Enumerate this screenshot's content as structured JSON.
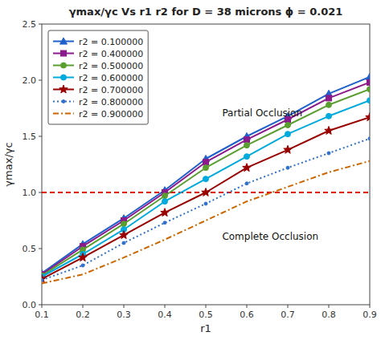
{
  "chart_data": {
    "type": "line",
    "title": "γmax/γc Vs r1 r2 for D = 38 microns ϕ = 0.021",
    "x_label": "r1",
    "y_label": "γmax/γc",
    "x": [
      0.1,
      0.2,
      0.3,
      0.4,
      0.5,
      0.6,
      0.7,
      0.8,
      0.9
    ],
    "xlim": [
      0.1,
      0.9
    ],
    "ylim": [
      0,
      2.5
    ],
    "xticks": [
      0.1,
      0.2,
      0.3,
      0.4,
      0.5,
      0.6,
      0.7,
      0.8,
      0.9
    ],
    "yticks": [
      {
        "value": 0,
        "label": "0.0"
      },
      0.5,
      {
        "value": 1.0,
        "label": "1.0"
      },
      1.5,
      {
        "value": 2.0,
        "label": "2.0"
      },
      2.5
    ],
    "grid": false,
    "legend": "upper left",
    "series": [
      {
        "name": "r2 = 0.100000",
        "color": "#2060cc",
        "line_style": "solid",
        "marker": "triangle",
        "values": [
          0.28,
          0.54,
          0.77,
          1.02,
          1.3,
          1.5,
          1.68,
          1.88,
          2.03
        ]
      },
      {
        "name": "r2 = 0.400000",
        "color": "#8b1a8b",
        "line_style": "solid",
        "marker": "square",
        "values": [
          0.27,
          0.52,
          0.75,
          1.0,
          1.27,
          1.47,
          1.65,
          1.84,
          1.98
        ]
      },
      {
        "name": "r2 = 0.500000",
        "color": "#5a9e30",
        "line_style": "solid",
        "marker": "circle",
        "values": [
          0.26,
          0.49,
          0.72,
          0.97,
          1.22,
          1.42,
          1.6,
          1.78,
          1.92
        ]
      },
      {
        "name": "r2 = 0.600000",
        "color": "#00aadd",
        "line_style": "solid",
        "marker": "circle",
        "values": [
          0.25,
          0.45,
          0.67,
          0.92,
          1.12,
          1.32,
          1.52,
          1.68,
          1.82
        ]
      },
      {
        "name": "r2 = 0.700000",
        "color": "#990000",
        "line_style": "solid",
        "marker": "star",
        "values": [
          0.23,
          0.42,
          0.62,
          0.82,
          1.0,
          1.22,
          1.38,
          1.55,
          1.67
        ]
      },
      {
        "name": "r2 = 0.800000",
        "color": "#3070cc",
        "line_style": "dotted",
        "marker": "point",
        "values": [
          0.22,
          0.35,
          0.55,
          0.73,
          0.9,
          1.08,
          1.22,
          1.35,
          1.48
        ]
      },
      {
        "name": "r2 = 0.900000",
        "color": "#cc6600",
        "line_style": "dashdot",
        "marker": "none",
        "values": [
          0.19,
          0.27,
          0.42,
          0.58,
          0.75,
          0.92,
          1.05,
          1.18,
          1.28
        ]
      }
    ],
    "reference_line": {
      "y": 1.0,
      "color": "#dd0000",
      "line_style": "dashed"
    },
    "annotations": [
      {
        "text": "Partial Occlusion",
        "x": 0.54,
        "y": 1.68
      },
      {
        "text": "Complete Occlusion",
        "x": 0.54,
        "y": 0.58
      }
    ]
  }
}
